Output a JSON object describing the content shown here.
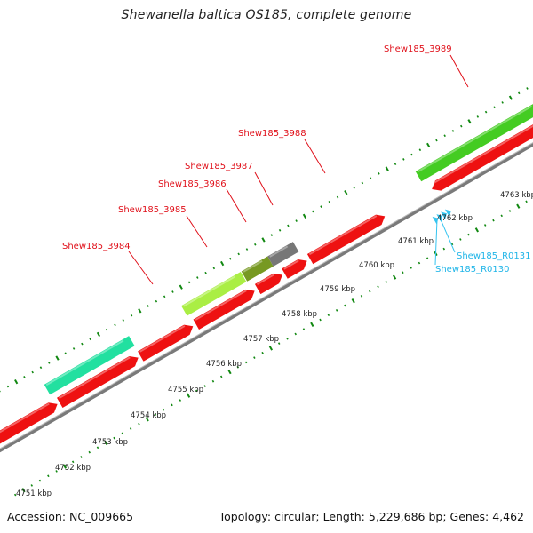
{
  "title": "Shewanella baltica OS185, complete genome",
  "footer": {
    "accession": "Accession: NC_009665",
    "summary": "Topology: circular; Length: 5,229,686 bp; Genes: 4,462"
  },
  "colors": {
    "cds": "#ee1111",
    "rna": "#35c4f0",
    "forward_green": "#44cc22",
    "teal": "#22e0a0",
    "lime": "#aaee44",
    "olive": "#779922",
    "gray": "#777777",
    "tick": "#118811"
  },
  "scale_labels": [
    "4751 kbp",
    "4752 kbp",
    "4753 kbp",
    "4754 kbp",
    "4755 kbp",
    "4756 kbp",
    "4757 kbp",
    "4758 kbp",
    "4759 kbp",
    "4760 kbp",
    "4761 kbp",
    "4762 kbp",
    "4763 kbp"
  ],
  "gene_labels": [
    {
      "name": "Shew185_3984",
      "kind": "cds"
    },
    {
      "name": "Shew185_3985",
      "kind": "cds"
    },
    {
      "name": "Shew185_3986",
      "kind": "cds"
    },
    {
      "name": "Shew185_3987",
      "kind": "cds"
    },
    {
      "name": "Shew185_3988",
      "kind": "cds"
    },
    {
      "name": "Shew185_3989",
      "kind": "cds"
    },
    {
      "name": "Shew185_R0131",
      "kind": "rna"
    },
    {
      "name": "Shew185_R0130",
      "kind": "rna"
    }
  ]
}
